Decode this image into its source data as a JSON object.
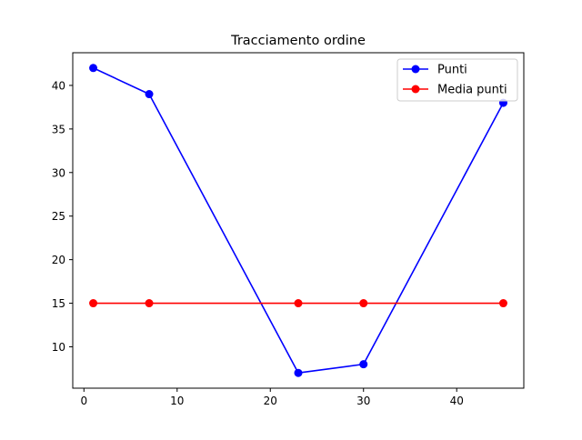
{
  "chart_data": {
    "type": "line",
    "title": "Tracciamento ordine",
    "xlabel": "",
    "ylabel": "",
    "xlim": [
      -1.2,
      47.2
    ],
    "ylim": [
      5.25,
      43.75
    ],
    "xticks": [
      0,
      10,
      20,
      30,
      40
    ],
    "yticks": [
      10,
      15,
      20,
      25,
      30,
      35,
      40
    ],
    "grid": false,
    "legend_position": "top-right",
    "series": [
      {
        "name": "Punti",
        "color": "#0000ff",
        "marker": "circle",
        "x": [
          1,
          7,
          23,
          30,
          45
        ],
        "y": [
          42,
          39,
          7,
          8,
          38
        ]
      },
      {
        "name": "Media punti",
        "color": "#ff0000",
        "marker": "circle",
        "x": [
          1,
          7,
          23,
          30,
          45
        ],
        "y": [
          15,
          15,
          15,
          15,
          15
        ]
      }
    ]
  }
}
